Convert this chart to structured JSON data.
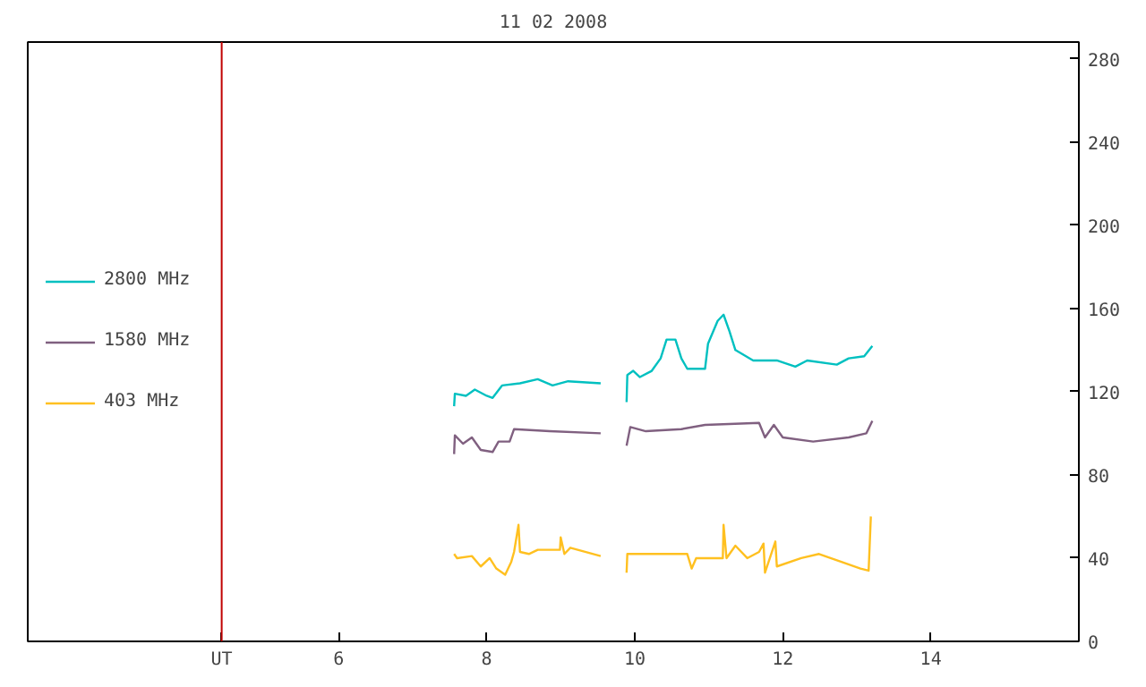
{
  "chart_data": {
    "type": "line",
    "title": "11 02 2008",
    "xlim": [
      1.8,
      16
    ],
    "ylim": [
      0,
      288
    ],
    "xticks": [
      {
        "value": 4.42,
        "label": "UT"
      },
      6,
      8,
      10,
      12,
      14
    ],
    "yticks": [
      0,
      40,
      80,
      120,
      160,
      200,
      240,
      280
    ],
    "grid": false,
    "legend": "left",
    "ref_lines": [
      {
        "axis": "x",
        "value": 4.42,
        "color": "#c00000"
      }
    ],
    "series": [
      {
        "name": "2800 MHz",
        "color": "#00c0c0",
        "x": [
          7.56,
          7.57,
          7.72,
          7.84,
          8.0,
          8.08,
          8.21,
          8.45,
          8.69,
          8.89,
          9.1,
          9.54,
          9.7,
          9.89,
          9.9,
          9.98,
          10.07,
          10.23,
          10.35,
          10.43,
          10.55,
          10.63,
          10.71,
          10.95,
          10.99,
          11.12,
          11.2,
          11.28,
          11.36,
          11.6,
          11.92,
          12.17,
          12.33,
          12.73,
          12.89,
          13.1,
          13.21
        ],
        "values": [
          113,
          119,
          118,
          121,
          118,
          117,
          123,
          124,
          126,
          123,
          125,
          124,
          null,
          115,
          128,
          130,
          127,
          130,
          136,
          145,
          145,
          136,
          131,
          131,
          143,
          154,
          157,
          149,
          140,
          135,
          135,
          132,
          135,
          133,
          136,
          137,
          142
        ]
      },
      {
        "name": "1580 MHz",
        "color": "#806080",
        "x": [
          7.56,
          7.57,
          7.68,
          7.8,
          7.92,
          8.08,
          8.16,
          8.31,
          8.37,
          8.85,
          9.54,
          9.7,
          9.89,
          9.94,
          10.15,
          10.63,
          10.95,
          11.68,
          11.76,
          11.88,
          12.0,
          12.41,
          12.89,
          13.13,
          13.21
        ],
        "values": [
          90,
          99,
          95,
          98,
          92,
          91,
          96,
          96,
          102,
          101,
          100,
          null,
          94,
          103,
          101,
          102,
          104,
          105,
          98,
          104,
          98,
          96,
          98,
          100,
          106
        ]
      },
      {
        "name": "403 MHz",
        "color": "#ffc020",
        "x": [
          7.56,
          7.6,
          7.8,
          7.92,
          8.04,
          8.13,
          8.25,
          8.33,
          8.37,
          8.43,
          8.45,
          8.57,
          8.69,
          8.99,
          9.0,
          9.05,
          9.13,
          9.54,
          9.7,
          9.89,
          9.9,
          10.15,
          10.71,
          10.77,
          10.83,
          11.19,
          11.2,
          11.24,
          11.36,
          11.52,
          11.68,
          11.74,
          11.76,
          11.9,
          11.92,
          12.25,
          12.49,
          12.81,
          13.05,
          13.16,
          13.19
        ],
        "values": [
          42,
          40,
          41,
          36,
          40,
          35,
          32,
          38,
          43,
          56,
          43,
          42,
          44,
          44,
          50,
          42,
          45,
          41,
          null,
          33,
          42,
          42,
          42,
          35,
          40,
          40,
          56,
          40,
          46,
          40,
          43,
          47,
          33,
          48,
          36,
          40,
          42,
          38,
          35,
          34,
          60
        ]
      }
    ]
  }
}
